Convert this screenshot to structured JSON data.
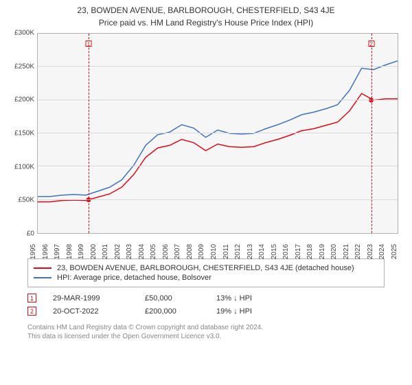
{
  "title": "23, BOWDEN AVENUE, BARLBOROUGH, CHESTERFIELD, S43 4JE",
  "subtitle": "Price paid vs. HM Land Registry's House Price Index (HPI)",
  "chart": {
    "type": "line",
    "background_color": "#f6f6f6",
    "border_color": "#b0b0b0",
    "grid_color": "#d9d9d9",
    "y": {
      "min": 0,
      "max": 300000,
      "step": 50000,
      "ticks": [
        "£0",
        "£50K",
        "£100K",
        "£150K",
        "£200K",
        "£250K",
        "£300K"
      ],
      "tick_fontsize": 10
    },
    "x": {
      "min": 1995,
      "max": 2025,
      "step": 1,
      "labels": [
        "1995",
        "1996",
        "1997",
        "1998",
        "1999",
        "2000",
        "2001",
        "2002",
        "2003",
        "2004",
        "2005",
        "2006",
        "2007",
        "2008",
        "2009",
        "2010",
        "2011",
        "2012",
        "2013",
        "2014",
        "2015",
        "2016",
        "2017",
        "2018",
        "2019",
        "2020",
        "2021",
        "2022",
        "2023",
        "2024",
        "2025"
      ],
      "tick_fontsize": 10
    },
    "series": [
      {
        "id": "hpi",
        "label": "HPI: Average price, detached house, Bolsover",
        "color": "#3f72c4",
        "line_width": 1.5,
        "points": [
          [
            1995,
            55000
          ],
          [
            1996,
            55000
          ],
          [
            1997,
            57000
          ],
          [
            1998,
            58000
          ],
          [
            1999,
            57000
          ],
          [
            2000,
            63000
          ],
          [
            2001,
            69000
          ],
          [
            2002,
            80000
          ],
          [
            2003,
            102000
          ],
          [
            2004,
            132000
          ],
          [
            2005,
            148000
          ],
          [
            2006,
            152000
          ],
          [
            2007,
            163000
          ],
          [
            2008,
            158000
          ],
          [
            2009,
            144000
          ],
          [
            2010,
            155000
          ],
          [
            2011,
            150000
          ],
          [
            2012,
            149000
          ],
          [
            2013,
            150000
          ],
          [
            2014,
            157000
          ],
          [
            2015,
            163000
          ],
          [
            2016,
            170000
          ],
          [
            2017,
            178000
          ],
          [
            2018,
            182000
          ],
          [
            2019,
            187000
          ],
          [
            2020,
            193000
          ],
          [
            2021,
            215000
          ],
          [
            2022,
            248000
          ],
          [
            2023,
            246000
          ],
          [
            2024,
            253000
          ],
          [
            2025,
            259000
          ]
        ]
      },
      {
        "id": "price_paid",
        "label": "23, BOWDEN AVENUE, BARLBOROUGH, CHESTERFIELD, S43 4JE (detached house)",
        "color": "#e40914",
        "line_width": 1.5,
        "points": [
          [
            1995,
            47000
          ],
          [
            1996,
            47000
          ],
          [
            1997,
            49000
          ],
          [
            1998,
            49500
          ],
          [
            1999,
            49000
          ],
          [
            2000,
            54000
          ],
          [
            2001,
            59000
          ],
          [
            2002,
            69000
          ],
          [
            2003,
            88000
          ],
          [
            2004,
            114000
          ],
          [
            2005,
            128000
          ],
          [
            2006,
            132000
          ],
          [
            2007,
            141000
          ],
          [
            2008,
            136000
          ],
          [
            2009,
            124000
          ],
          [
            2010,
            134000
          ],
          [
            2011,
            130000
          ],
          [
            2012,
            129000
          ],
          [
            2013,
            130000
          ],
          [
            2014,
            136000
          ],
          [
            2015,
            141000
          ],
          [
            2016,
            147000
          ],
          [
            2017,
            154000
          ],
          [
            2018,
            157000
          ],
          [
            2019,
            162000
          ],
          [
            2020,
            167000
          ],
          [
            2021,
            184000
          ],
          [
            2022,
            210000
          ],
          [
            2023,
            200000
          ],
          [
            2024,
            202000
          ],
          [
            2025,
            202000
          ]
        ]
      }
    ],
    "sale_markers": [
      {
        "n": "1",
        "year": 1999.24,
        "value": 50000,
        "color": "#e40914"
      },
      {
        "n": "2",
        "year": 2022.8,
        "value": 200000,
        "color": "#e40914"
      }
    ]
  },
  "legend": {
    "items": [
      {
        "color": "#e40914",
        "label_key": "chart.series.1.label"
      },
      {
        "color": "#3f72c4",
        "label_key": "chart.series.0.label"
      }
    ]
  },
  "sales_list": {
    "arrow": "↓",
    "rows": [
      {
        "n": "1",
        "color": "#e40914",
        "date": "29-MAR-1999",
        "price": "£50,000",
        "hpi": "13% ↓ HPI"
      },
      {
        "n": "2",
        "color": "#e40914",
        "date": "20-OCT-2022",
        "price": "£200,000",
        "hpi": "19% ↓ HPI"
      }
    ]
  },
  "footnote_line1": "Contains HM Land Registry data © Crown copyright and database right 2024.",
  "footnote_line2": "This data is licensed under the Open Government Licence v3.0."
}
